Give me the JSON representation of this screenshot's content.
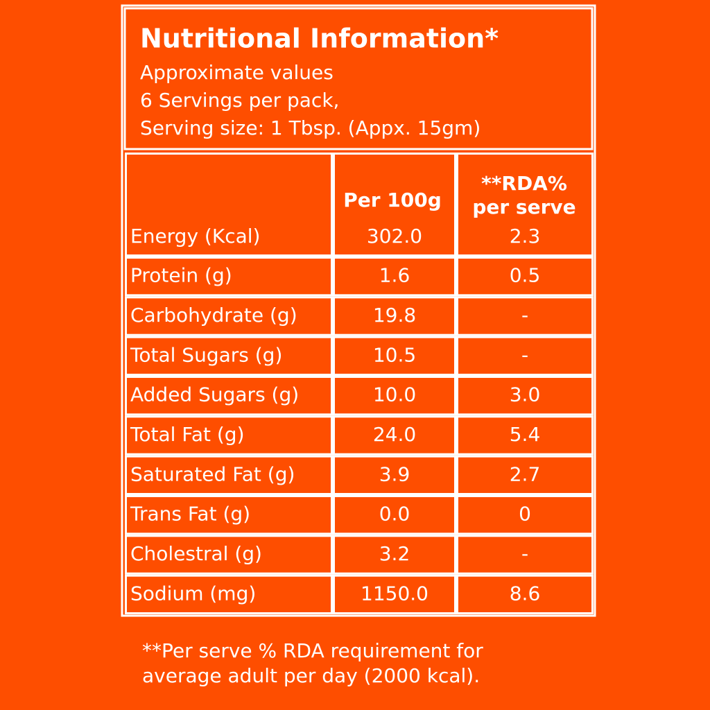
{
  "header": {
    "title": "Nutritional Information*",
    "lines": [
      "Approximate values",
      "6 Servings per pack,",
      "Serving size: 1 Tbsp. (Appx. 15gm)"
    ]
  },
  "table": {
    "columns": {
      "per_100g": "Per 100g",
      "rda": [
        "**RDA%",
        "per serve"
      ]
    },
    "rows": [
      [
        "Energy (Kcal)",
        "302.0",
        "2.3"
      ],
      [
        "Protein (g)",
        "1.6",
        "0.5"
      ],
      [
        "Carbohydrate (g)",
        "19.8",
        "-"
      ],
      [
        "Total Sugars (g)",
        "10.5",
        "-"
      ],
      [
        "Added Sugars (g)",
        "10.0",
        "3.0"
      ],
      [
        "Total Fat (g)",
        "24.0",
        "5.4"
      ],
      [
        "Saturated Fat (g)",
        "3.9",
        "2.7"
      ],
      [
        "Trans Fat (g)",
        "0.0",
        "0"
      ],
      [
        "Cholestral (g)",
        "3.2",
        "-"
      ],
      [
        "Sodium (mg)",
        "1150.0",
        "8.6"
      ]
    ]
  },
  "footnote": [
    "**Per serve % RDA requirement for",
    "average adult per day (2000 kcal)."
  ]
}
